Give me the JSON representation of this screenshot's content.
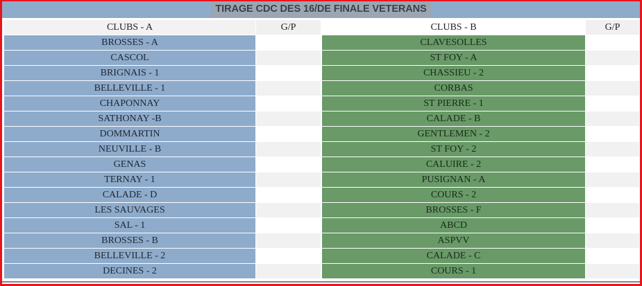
{
  "title": "TIRAGE CDC DES 16/DE FINALE VETERANS",
  "headers": {
    "clubs_a": "CLUBS - A",
    "gp_a": "G/P",
    "clubs_b": "CLUBS - B",
    "gp_b": "G/P"
  },
  "colors": {
    "border": "#e8141b",
    "title_bg": "#8eabcb",
    "club_a_bg": "#8eabcb",
    "club_b_bg": "#699a68",
    "alt_row_bg": "#f1f1f1"
  },
  "matches": [
    {
      "club_a": "BROSSES - A",
      "gp_a": "",
      "club_b": "CLAVESOLLES",
      "gp_b": ""
    },
    {
      "club_a": "CASCOL",
      "gp_a": "",
      "club_b": "ST FOY - A",
      "gp_b": ""
    },
    {
      "club_a": "BRIGNAIS - 1",
      "gp_a": "",
      "club_b": "CHASSIEU - 2",
      "gp_b": ""
    },
    {
      "club_a": "BELLEVILLE - 1",
      "gp_a": "",
      "club_b": "CORBAS",
      "gp_b": ""
    },
    {
      "club_a": "CHAPONNAY",
      "gp_a": "",
      "club_b": "ST PIERRE - 1",
      "gp_b": ""
    },
    {
      "club_a": "SATHONAY -B",
      "gp_a": "",
      "club_b": "CALADE - B",
      "gp_b": ""
    },
    {
      "club_a": "DOMMARTIN",
      "gp_a": "",
      "club_b": "GENTLEMEN - 2",
      "gp_b": ""
    },
    {
      "club_a": "NEUVILLE - B",
      "gp_a": "",
      "club_b": "ST FOY - 2",
      "gp_b": ""
    },
    {
      "club_a": "GENAS",
      "gp_a": "",
      "club_b": "CALUIRE - 2",
      "gp_b": ""
    },
    {
      "club_a": "TERNAY - 1",
      "gp_a": "",
      "club_b": "PUSIGNAN - A",
      "gp_b": ""
    },
    {
      "club_a": "CALADE - D",
      "gp_a": "",
      "club_b": "COURS - 2",
      "gp_b": ""
    },
    {
      "club_a": "LES SAUVAGES",
      "gp_a": "",
      "club_b": "BROSSES - F",
      "gp_b": ""
    },
    {
      "club_a": "SAL - 1",
      "gp_a": "",
      "club_b": "ABCD",
      "gp_b": ""
    },
    {
      "club_a": "BROSSES - B",
      "gp_a": "",
      "club_b": "ASPVV",
      "gp_b": ""
    },
    {
      "club_a": "BELLEVILLE - 2",
      "gp_a": "",
      "club_b": "CALADE - C",
      "gp_b": ""
    },
    {
      "club_a": "DECINES - 2",
      "gp_a": "",
      "club_b": "COURS - 1",
      "gp_b": ""
    }
  ]
}
